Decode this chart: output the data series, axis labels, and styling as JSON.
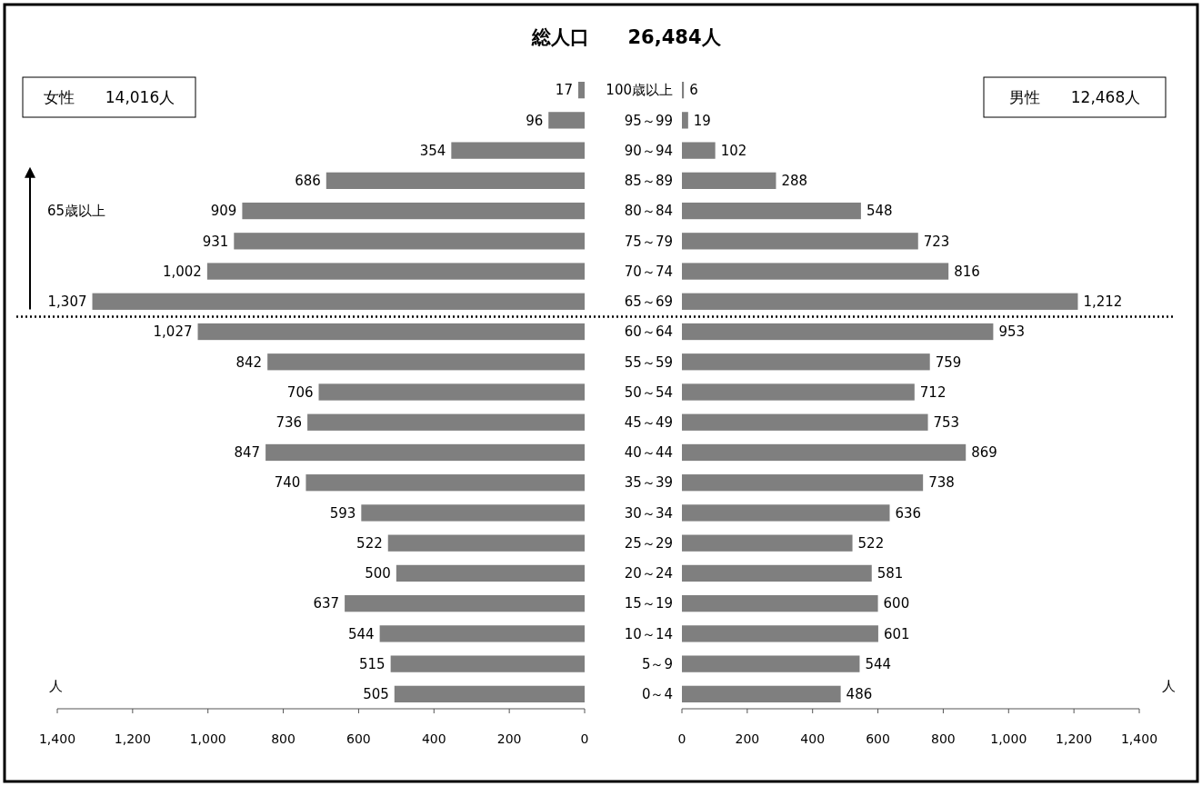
{
  "chart_data": [
    {
      "type": "bar",
      "orientation": "horizontal",
      "title": "総人口　　26,484人",
      "xlabel": "人",
      "annotations": [
        "女性　　14,016人"
      ],
      "categories": [
        "100歳以上",
        "95～99",
        "90～94",
        "85～89",
        "80～84",
        "75～79",
        "70～74",
        "65～69",
        "60～64",
        "55～59",
        "50～54",
        "45～49",
        "40～44",
        "35～39",
        "30～34",
        "25～29",
        "20～24",
        "15～19",
        "10～14",
        "5～9",
        "0～4"
      ],
      "values": [
        17,
        96,
        354,
        686,
        909,
        931,
        1002,
        1307,
        1027,
        842,
        706,
        736,
        847,
        740,
        593,
        522,
        500,
        637,
        544,
        515,
        505
      ],
      "color": "#7f7f7f",
      "value_labels": [
        "17",
        "96",
        "354",
        "686",
        "909",
        "931",
        "1,002",
        "1,307",
        "1,027",
        "842",
        "706",
        "736",
        "847",
        "740",
        "593",
        "522",
        "500",
        "637",
        "544",
        "515",
        "505"
      ],
      "xlim": [
        1400,
        0
      ],
      "xticks": [
        {
          "value": 1400,
          "label": "1,400"
        },
        {
          "value": 1200,
          "label": "1,200"
        },
        {
          "value": 1000,
          "label": "1,000"
        },
        800,
        600,
        400,
        200,
        0
      ],
      "ref_lines": [
        {
          "axis": "y",
          "value": "65～69",
          "label": "65歳以上",
          "line_style": "dotted",
          "color": "#000000"
        }
      ]
    },
    {
      "type": "bar",
      "orientation": "horizontal",
      "xlabel": "人",
      "annotations": [
        "男性　　12,468人"
      ],
      "categories": [
        null,
        null,
        null,
        null,
        null,
        null,
        null,
        null,
        null,
        null,
        null,
        null,
        null,
        null,
        null,
        null,
        null,
        null,
        null,
        null,
        null
      ],
      "values": [
        6,
        19,
        102,
        288,
        548,
        723,
        816,
        1212,
        953,
        759,
        712,
        753,
        869,
        738,
        636,
        522,
        581,
        600,
        601,
        544,
        486
      ],
      "color": "#7f7f7f",
      "value_labels": [
        "6",
        "19",
        "102",
        "288",
        "548",
        "723",
        "816",
        "1,212",
        "953",
        "759",
        "712",
        "753",
        "869",
        "738",
        "636",
        "522",
        "581",
        "600",
        "601",
        "544",
        "486"
      ],
      "xlim": [
        0,
        1400
      ],
      "xticks": [
        0,
        200,
        400,
        600,
        800,
        {
          "value": 1000,
          "label": "1,000"
        },
        {
          "value": 1200,
          "label": "1,200"
        },
        {
          "value": 1400,
          "label": "1,400"
        }
      ],
      "tick_labels": "x"
    }
  ]
}
